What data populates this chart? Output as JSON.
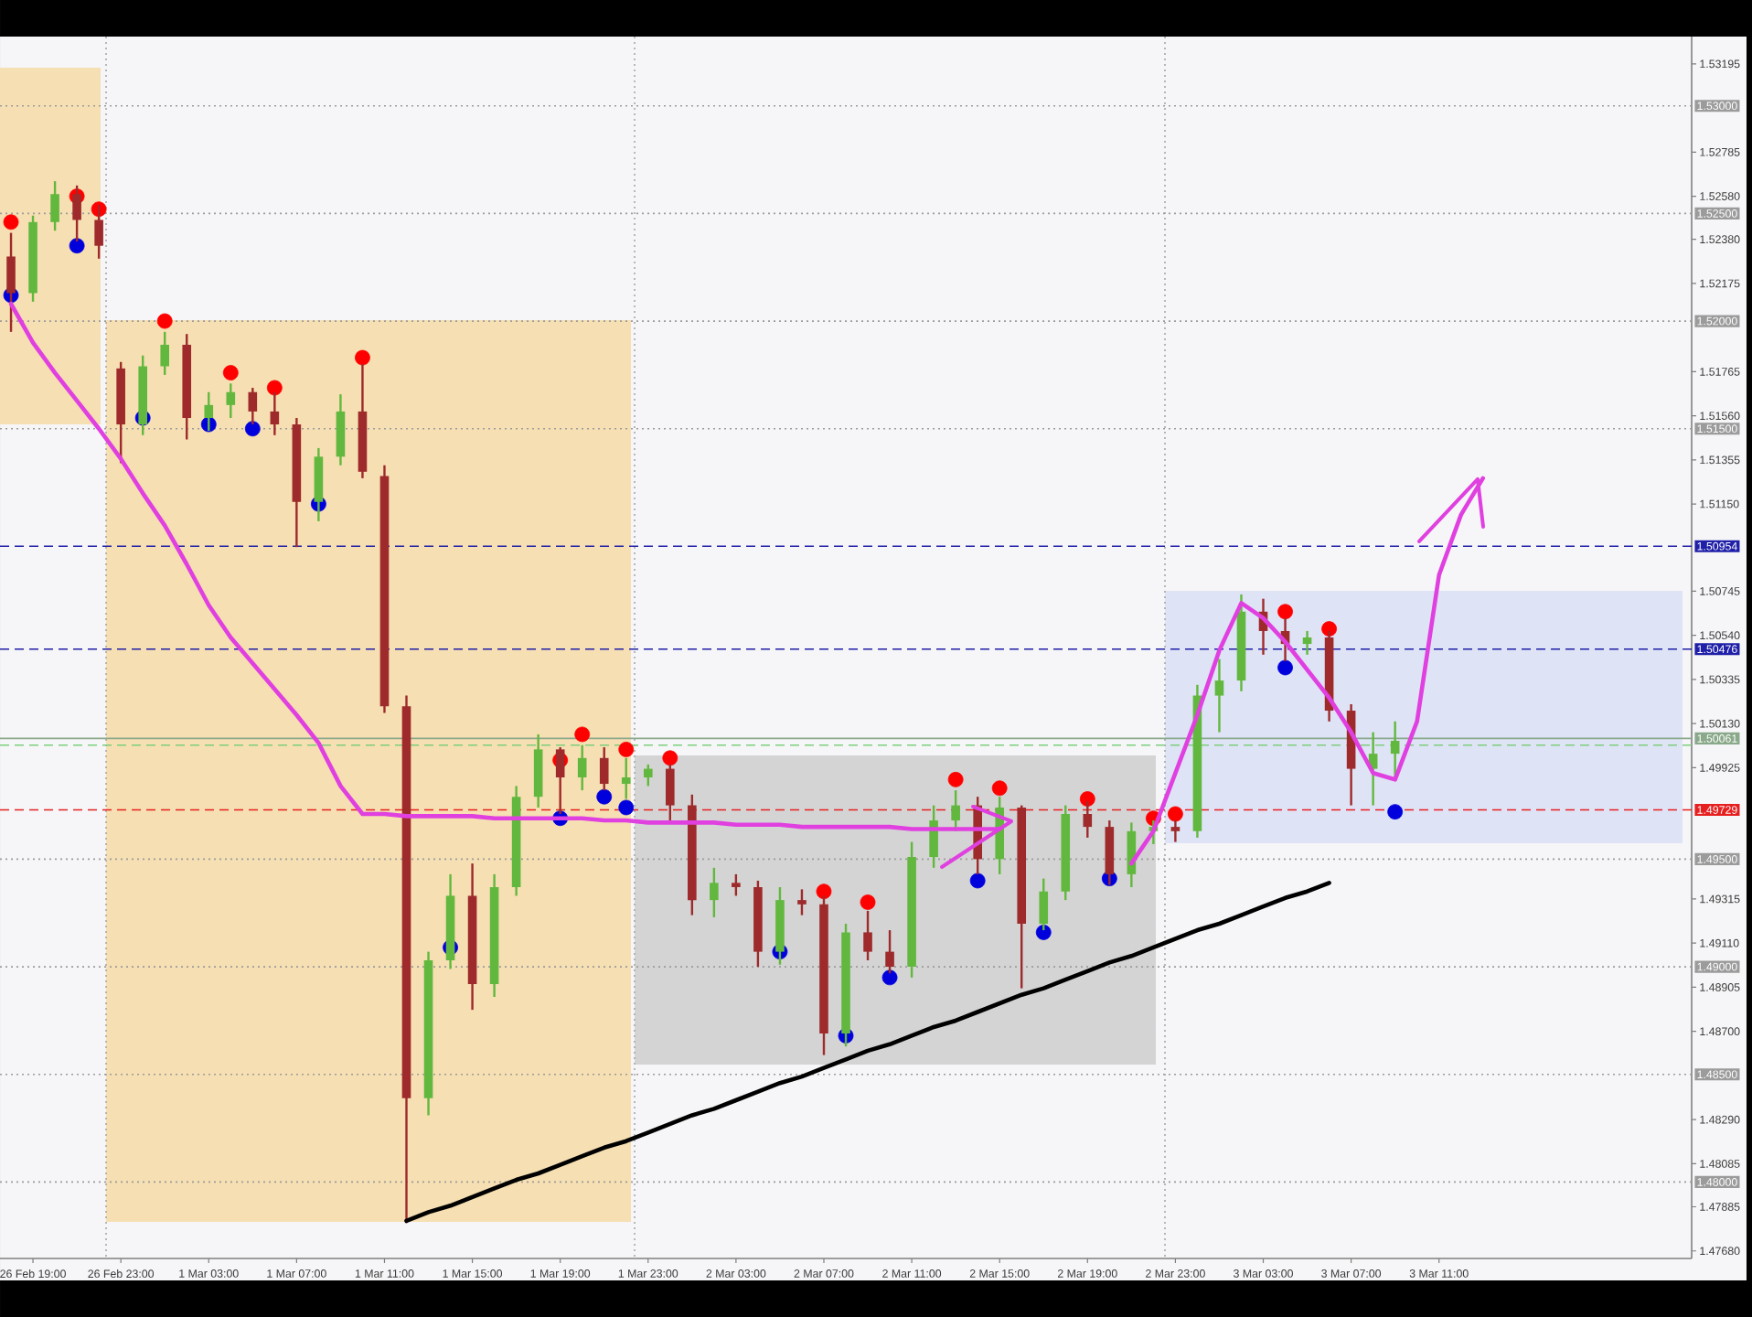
{
  "chart_data": {
    "type": "candlestick",
    "categories": [
      null,
      "26 Feb 19:00",
      null,
      null,
      null,
      "26 Feb 23:00",
      null,
      null,
      null,
      "1 Mar 03:00",
      null,
      null,
      null,
      "1 Mar 07:00",
      null,
      null,
      null,
      "1 Mar 11:00",
      null,
      null,
      null,
      "1 Mar 15:00",
      null,
      null,
      null,
      "1 Mar 19:00",
      null,
      null,
      null,
      "1 Mar 23:00",
      null,
      null,
      null,
      "2 Mar 03:00",
      null,
      null,
      null,
      "2 Mar 07:00",
      null,
      null,
      null,
      "2 Mar 11:00",
      null,
      null,
      null,
      "2 Mar 15:00",
      null,
      null,
      null,
      "2 Mar 19:00",
      null,
      null,
      null,
      "2 Mar 23:00",
      null,
      null,
      null,
      "3 Mar 03:00",
      null,
      null,
      null,
      "3 Mar 07:00",
      null,
      null,
      null,
      "3 Mar 11:00",
      null,
      null,
      null,
      null,
      null,
      null,
      null,
      null,
      null,
      null,
      null
    ],
    "ohlc": [
      [
        1.523,
        1.5241,
        1.5195,
        1.5213
      ],
      [
        1.5213,
        1.5249,
        1.5209,
        1.5246
      ],
      [
        1.5246,
        1.5265,
        1.5242,
        1.5259
      ],
      [
        1.5259,
        1.5263,
        1.5237,
        1.5247
      ],
      [
        1.5247,
        1.5254,
        1.5229,
        1.5235
      ],
      [
        1.5178,
        1.5181,
        1.5134,
        1.5152
      ],
      [
        1.5152,
        1.5184,
        1.5147,
        1.5179
      ],
      [
        1.5179,
        1.5195,
        1.5175,
        1.5189
      ],
      [
        1.5189,
        1.5194,
        1.5145,
        1.5155
      ],
      [
        1.5155,
        1.5167,
        1.5149,
        1.5161
      ],
      [
        1.5161,
        1.5171,
        1.5155,
        1.5167
      ],
      [
        1.5167,
        1.5169,
        1.5152,
        1.5158
      ],
      [
        1.5158,
        1.5167,
        1.5147,
        1.5152
      ],
      [
        1.5152,
        1.5155,
        1.5095,
        1.5116
      ],
      [
        1.5116,
        1.5141,
        1.5107,
        1.5137
      ],
      [
        1.5137,
        1.5166,
        1.5133,
        1.5158
      ],
      [
        1.5158,
        1.518,
        1.5127,
        1.513
      ],
      [
        1.5128,
        1.5133,
        1.5018,
        1.5021
      ],
      [
        1.5021,
        1.5026,
        1.4781,
        1.4839
      ],
      [
        1.4839,
        1.4907,
        1.4831,
        1.4903
      ],
      [
        1.4903,
        1.4943,
        1.4899,
        1.4933
      ],
      [
        1.4933,
        1.4948,
        1.488,
        1.4892
      ],
      [
        1.4892,
        1.4943,
        1.4886,
        1.4937
      ],
      [
        1.4937,
        1.4984,
        1.4933,
        1.4979
      ],
      [
        1.4979,
        1.5008,
        1.4974,
        1.5001
      ],
      [
        1.5001,
        1.5002,
        1.4971,
        1.4988
      ],
      [
        1.4988,
        1.5003,
        1.4982,
        1.4997
      ],
      [
        1.4997,
        1.5002,
        1.4982,
        1.4985
      ],
      [
        1.4985,
        1.4997,
        1.4978,
        1.4988
      ],
      [
        1.4988,
        1.4994,
        1.4984,
        1.4992
      ],
      [
        1.4992,
        1.4994,
        1.4968,
        1.4975
      ],
      [
        1.4975,
        1.498,
        1.4924,
        1.4931
      ],
      [
        1.4931,
        1.4946,
        1.4923,
        1.4939
      ],
      [
        1.4939,
        1.4943,
        1.4933,
        1.4937
      ],
      [
        1.4937,
        1.494,
        1.49,
        1.4907
      ],
      [
        1.4907,
        1.4937,
        1.4901,
        1.4931
      ],
      [
        1.4931,
        1.4936,
        1.4924,
        1.4929
      ],
      [
        1.4929,
        1.4933,
        1.4859,
        1.4869
      ],
      [
        1.4869,
        1.492,
        1.4863,
        1.4916
      ],
      [
        1.4916,
        1.4926,
        1.4903,
        1.4907
      ],
      [
        1.4907,
        1.4917,
        1.4897,
        1.49
      ],
      [
        1.49,
        1.4958,
        1.4895,
        1.4951
      ],
      [
        1.4951,
        1.4975,
        1.4946,
        1.4968
      ],
      [
        1.4968,
        1.4982,
        1.4963,
        1.4975
      ],
      [
        1.4975,
        1.4979,
        1.4943,
        1.495
      ],
      [
        1.495,
        1.4979,
        1.4943,
        1.4974
      ],
      [
        1.4974,
        1.4975,
        1.489,
        1.492
      ],
      [
        1.492,
        1.4941,
        1.4917,
        1.4935
      ],
      [
        1.4935,
        1.4975,
        1.4931,
        1.4971
      ],
      [
        1.4971,
        1.4977,
        1.496,
        1.4965
      ],
      [
        1.4965,
        1.4968,
        1.4938,
        1.4943
      ],
      [
        1.4943,
        1.4967,
        1.4937,
        1.4963
      ],
      [
        1.4963,
        1.4968,
        1.4957,
        1.4965
      ],
      [
        1.4965,
        1.4968,
        1.4958,
        1.4963
      ],
      [
        1.4963,
        1.5031,
        1.496,
        1.5026
      ],
      [
        1.5026,
        1.5043,
        1.5009,
        1.5033
      ],
      [
        1.5033,
        1.5073,
        1.5028,
        1.5065
      ],
      [
        1.5065,
        1.5071,
        1.5045,
        1.5056
      ],
      [
        1.5056,
        1.5062,
        1.5042,
        1.505
      ],
      [
        1.505,
        1.5056,
        1.5045,
        1.5053
      ],
      [
        1.5053,
        1.5056,
        1.5014,
        1.5019
      ],
      [
        1.5019,
        1.5022,
        1.4975,
        1.4992
      ],
      [
        1.4992,
        1.5009,
        1.4975,
        1.4999
      ],
      [
        1.4999,
        1.5014,
        1.4988,
        1.5005
      ],
      null,
      null,
      null,
      null,
      null,
      null,
      null,
      null,
      null,
      null,
      null,
      null,
      null
    ],
    "colors": [
      "#9e2a2b",
      "#62b83e",
      "#62b83e",
      "#9e2a2b",
      "#9e2a2b",
      "#9e2a2b",
      "#62b83e",
      "#62b83e",
      "#9e2a2b",
      "#62b83e",
      "#62b83e",
      "#9e2a2b",
      "#9e2a2b",
      "#9e2a2b",
      "#62b83e",
      "#62b83e",
      "#9e2a2b",
      "#9e2a2b",
      "#9e2a2b",
      "#62b83e",
      "#62b83e",
      "#9e2a2b",
      "#62b83e",
      "#62b83e",
      "#62b83e",
      "#9e2a2b",
      "#62b83e",
      "#9e2a2b",
      "#62b83e",
      "#62b83e",
      "#9e2a2b",
      "#9e2a2b",
      "#62b83e",
      "#9e2a2b",
      "#9e2a2b",
      "#62b83e",
      "#9e2a2b",
      "#9e2a2b",
      "#62b83e",
      "#9e2a2b",
      "#9e2a2b",
      "#62b83e",
      "#62b83e",
      "#62b83e",
      "#9e2a2b",
      "#62b83e",
      "#9e2a2b",
      "#62b83e",
      "#62b83e",
      "#9e2a2b",
      "#9e2a2b",
      "#62b83e",
      "#62b83e",
      "#9e2a2b",
      "#62b83e",
      "#62b83e",
      "#62b83e",
      "#9e2a2b",
      "#9e2a2b",
      "#62b83e",
      "#9e2a2b",
      "#9e2a2b",
      "#62b83e",
      "#62b83e",
      null,
      null,
      null,
      null,
      null,
      null,
      null,
      null,
      null,
      null,
      null,
      null,
      null
    ],
    "series": [
      {
        "type": "scatter",
        "color": "#ff0000",
        "marker": "circle",
        "values": [
          1.5246,
          null,
          null,
          1.5258,
          1.5252,
          null,
          null,
          1.52,
          null,
          null,
          1.5176,
          null,
          1.5169,
          null,
          null,
          null,
          1.5183,
          null,
          null,
          null,
          null,
          null,
          null,
          null,
          null,
          1.4996,
          1.5008,
          null,
          1.5001,
          null,
          1.4997,
          null,
          null,
          null,
          null,
          null,
          null,
          1.4935,
          null,
          1.493,
          null,
          null,
          null,
          1.4987,
          null,
          1.4983,
          null,
          null,
          null,
          1.4978,
          null,
          null,
          1.4969,
          1.4971,
          null,
          null,
          null,
          null,
          1.5065,
          null,
          1.5057,
          null,
          null,
          null,
          null,
          null,
          null,
          null,
          null,
          null,
          null,
          null,
          null,
          null,
          null,
          null,
          null
        ]
      },
      {
        "type": "scatter",
        "color": "#0000dd",
        "marker": "circle",
        "values": [
          1.5212,
          null,
          null,
          1.5235,
          null,
          null,
          1.5155,
          null,
          null,
          1.5152,
          null,
          1.515,
          null,
          null,
          1.5115,
          null,
          null,
          null,
          null,
          null,
          1.4909,
          null,
          null,
          null,
          null,
          1.4969,
          null,
          1.4979,
          1.4974,
          null,
          null,
          null,
          null,
          null,
          null,
          1.4907,
          null,
          null,
          1.4868,
          null,
          1.4895,
          null,
          null,
          null,
          1.494,
          null,
          null,
          1.4916,
          null,
          null,
          1.4941,
          null,
          null,
          null,
          null,
          null,
          null,
          null,
          1.5039,
          null,
          null,
          null,
          null,
          1.4972,
          null,
          null,
          null,
          null,
          null,
          null,
          null,
          null,
          null,
          null,
          null,
          null,
          null
        ]
      },
      {
        "type": "line",
        "color": "#000000",
        "values": [
          null,
          null,
          null,
          null,
          null,
          null,
          null,
          null,
          null,
          null,
          null,
          null,
          null,
          null,
          null,
          null,
          null,
          null,
          1.4782,
          1.4786,
          1.4789,
          1.4793,
          1.4797,
          1.4801,
          1.4804,
          1.4808,
          1.4812,
          1.4816,
          1.4819,
          1.4823,
          1.4827,
          1.4831,
          1.4834,
          1.4838,
          1.4842,
          1.4846,
          1.4849,
          1.4853,
          1.4857,
          1.4861,
          1.4864,
          1.4868,
          1.4872,
          1.4875,
          1.4879,
          1.4883,
          1.4887,
          1.489,
          1.4894,
          1.4898,
          1.4902,
          1.4905,
          1.4909,
          1.4913,
          1.4917,
          1.492,
          1.4924,
          1.4928,
          1.4932,
          1.4935,
          1.4939,
          null,
          null,
          null,
          null,
          null,
          null,
          null,
          null,
          null,
          null,
          null,
          null,
          null,
          null,
          null,
          null
        ]
      },
      {
        "type": "line",
        "color": "#e040e0",
        "values": [
          1.5208,
          1.519,
          1.5176,
          1.5163,
          1.515,
          1.5136,
          1.512,
          1.5105,
          1.5087,
          1.5068,
          1.5053,
          1.5041,
          1.5029,
          1.5017,
          1.5004,
          1.4984,
          1.4971,
          1.4971,
          1.497,
          1.497,
          1.497,
          1.497,
          1.4969,
          1.4969,
          1.4969,
          1.4969,
          1.4969,
          1.4968,
          1.4968,
          1.4967,
          1.4967,
          1.4967,
          1.4967,
          1.4966,
          1.4966,
          1.4966,
          1.4965,
          1.4965,
          1.4965,
          1.4965,
          1.4965,
          1.4964,
          1.4964,
          1.4964,
          1.4964,
          1.4964,
          null,
          null,
          null,
          null,
          null,
          null,
          null,
          null,
          null,
          null,
          null,
          null,
          null,
          null,
          null,
          null,
          null,
          null,
          null,
          null,
          null,
          null,
          null,
          null,
          null,
          null,
          null,
          null,
          null,
          null,
          null
        ]
      },
      {
        "type": "line",
        "color": "#e040e0",
        "values": [
          null,
          null,
          null,
          null,
          null,
          null,
          null,
          null,
          null,
          null,
          null,
          null,
          null,
          null,
          null,
          null,
          null,
          null,
          null,
          null,
          null,
          null,
          null,
          null,
          null,
          null,
          null,
          null,
          null,
          null,
          null,
          null,
          null,
          null,
          null,
          null,
          null,
          null,
          null,
          null,
          null,
          null,
          null,
          null,
          null,
          null,
          null,
          null,
          null,
          null,
          null,
          1.4948,
          1.4963,
          1.499,
          1.5017,
          1.5047,
          1.5069,
          1.5062,
          1.5051,
          1.5038,
          1.5025,
          1.5009,
          1.499,
          1.4987,
          1.5014,
          1.5082,
          1.511,
          1.5127,
          null,
          null,
          null,
          null,
          null,
          null,
          null,
          null,
          null
        ]
      }
    ],
    "ylim": [
      1.47645,
      1.53322
    ],
    "yticks": [
      1.53195,
      1.52785,
      {
        "value": 1.5258,
        "label": "1.52580"
      },
      {
        "value": 1.5238,
        "label": "1.52380"
      },
      1.52175,
      1.51765,
      {
        "value": 1.5156,
        "label": "1.51560"
      },
      1.51355,
      {
        "value": 1.5115,
        "label": "1.51150"
      },
      1.50745,
      {
        "value": 1.5054,
        "label": "1.50540"
      },
      1.50335,
      {
        "value": 1.5013,
        "label": "1.50130"
      },
      1.49925,
      1.49315,
      {
        "value": 1.4911,
        "label": "1.49110"
      },
      1.48905,
      {
        "value": 1.487,
        "label": "1.48700"
      },
      {
        "value": 1.4829,
        "label": "1.48290"
      },
      1.48085,
      1.47885,
      {
        "value": 1.4768,
        "label": "1.47680"
      }
    ],
    "ref_lines": [
      {
        "axis": "y",
        "value": 1.53,
        "label": "1.53000",
        "color": "#9b9b9b",
        "line_style": "dotted"
      },
      {
        "axis": "y",
        "value": 1.525,
        "label": "1.52500",
        "color": "#9b9b9b",
        "line_style": "dotted"
      },
      {
        "axis": "y",
        "value": 1.52,
        "label": "1.52000",
        "color": "#9b9b9b",
        "line_style": "dotted"
      },
      {
        "axis": "y",
        "value": 1.515,
        "label": "1.51500",
        "color": "#9b9b9b",
        "line_style": "dotted"
      },
      {
        "axis": "y",
        "value": 1.495,
        "label": "1.49500",
        "color": "#9b9b9b",
        "line_style": "dotted"
      },
      {
        "axis": "y",
        "value": 1.49,
        "label": "1.49000",
        "color": "#9b9b9b",
        "line_style": "dotted"
      },
      {
        "axis": "y",
        "value": 1.485,
        "label": "1.48500",
        "color": "#9b9b9b",
        "line_style": "dotted"
      },
      {
        "axis": "y",
        "value": 1.48,
        "label": "1.48000",
        "color": "#9b9b9b",
        "line_style": "dotted"
      },
      {
        "axis": "y",
        "value": 1.50954,
        "label": "1.50954",
        "color": "#1f1fa8",
        "line_style": "dashed"
      },
      {
        "axis": "y",
        "value": 1.50476,
        "label": "1.50476",
        "color": "#1f1fa8",
        "line_style": "dashed"
      },
      {
        "axis": "y",
        "value": 1.50061,
        "label": "1.50061",
        "color": "#8aa88a",
        "line_style": "solid"
      },
      {
        "axis": "y",
        "value": 1.5003,
        "color": "#7ccf7c",
        "line_style": "dashed"
      },
      {
        "axis": "y",
        "value": 1.49729,
        "label": "1.49729",
        "color": "#e62020",
        "line_style": "dashed"
      }
    ]
  }
}
